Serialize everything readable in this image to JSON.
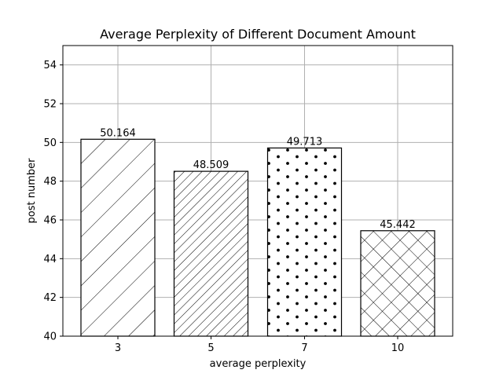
{
  "chart_data": {
    "type": "bar",
    "title": "Average Perplexity of Different Document Amount",
    "xlabel": "average perplexity",
    "ylabel": "post number",
    "categories": [
      "3",
      "5",
      "7",
      "10"
    ],
    "values": [
      50.164,
      48.509,
      49.713,
      45.442
    ],
    "value_labels": [
      "50.164",
      "48.509",
      "49.713",
      "45.442"
    ],
    "hatches": [
      "forward-diagonal-wide",
      "forward-diagonal-dense",
      "dots",
      "crosshatch"
    ],
    "ylim": [
      40,
      55
    ],
    "yticks": [
      40,
      42,
      44,
      46,
      48,
      50,
      52,
      54
    ],
    "grid": true,
    "bar_fill": "#ffffff",
    "bar_edge": "#000000",
    "grid_color": "#b0b0b0"
  }
}
